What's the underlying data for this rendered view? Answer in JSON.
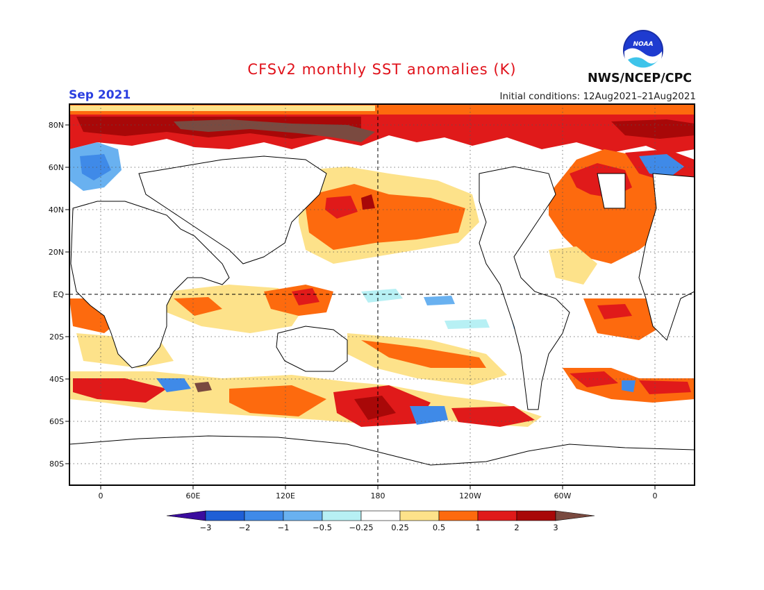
{
  "header": {
    "title": "CFSv2 monthly SST anomalies (K)",
    "valid_month": "Sep 2021",
    "initial_conditions": "Initial conditions: 12Aug2021–21Aug2021",
    "agency": "NWS/NCEP/CPC",
    "logo_text": "NOAA"
  },
  "colors": {
    "land": "#ffffff",
    "coast": "#000000",
    "grid": "#555555",
    "frame": "#000000",
    "title": "#e0121b",
    "valid_month": "#2b3fe0"
  },
  "map": {
    "type": "anomaly-map",
    "projection": "equirectangular",
    "lon_range": [
      -20,
      380
    ],
    "lat_range": [
      -90,
      90
    ],
    "lat_labels": [
      "80N",
      "60N",
      "40N",
      "20N",
      "EQ",
      "20S",
      "40S",
      "60S",
      "80S"
    ],
    "lat_values": [
      80,
      60,
      40,
      20,
      0,
      -20,
      -40,
      -60,
      -80
    ],
    "lon_labels": [
      "0",
      "60E",
      "120E",
      "180",
      "120W",
      "60W",
      "0"
    ],
    "lon_values": [
      0,
      60,
      120,
      180,
      240,
      300,
      360
    ],
    "dashed_reference": {
      "equator": 0,
      "dateline": 180
    }
  },
  "colorbar": {
    "labels": [
      "−3",
      "−2",
      "−1",
      "−0.5",
      "−0.25",
      "0.25",
      "0.5",
      "1",
      "2",
      "3"
    ],
    "colors": [
      "#3a0c9e",
      "#1f5fd6",
      "#3f8ae8",
      "#69b1f0",
      "#b7f0f4",
      "#ffffff",
      "#fde28a",
      "#fd6a0e",
      "#e01a1a",
      "#a80808",
      "#7a4a40"
    ]
  }
}
